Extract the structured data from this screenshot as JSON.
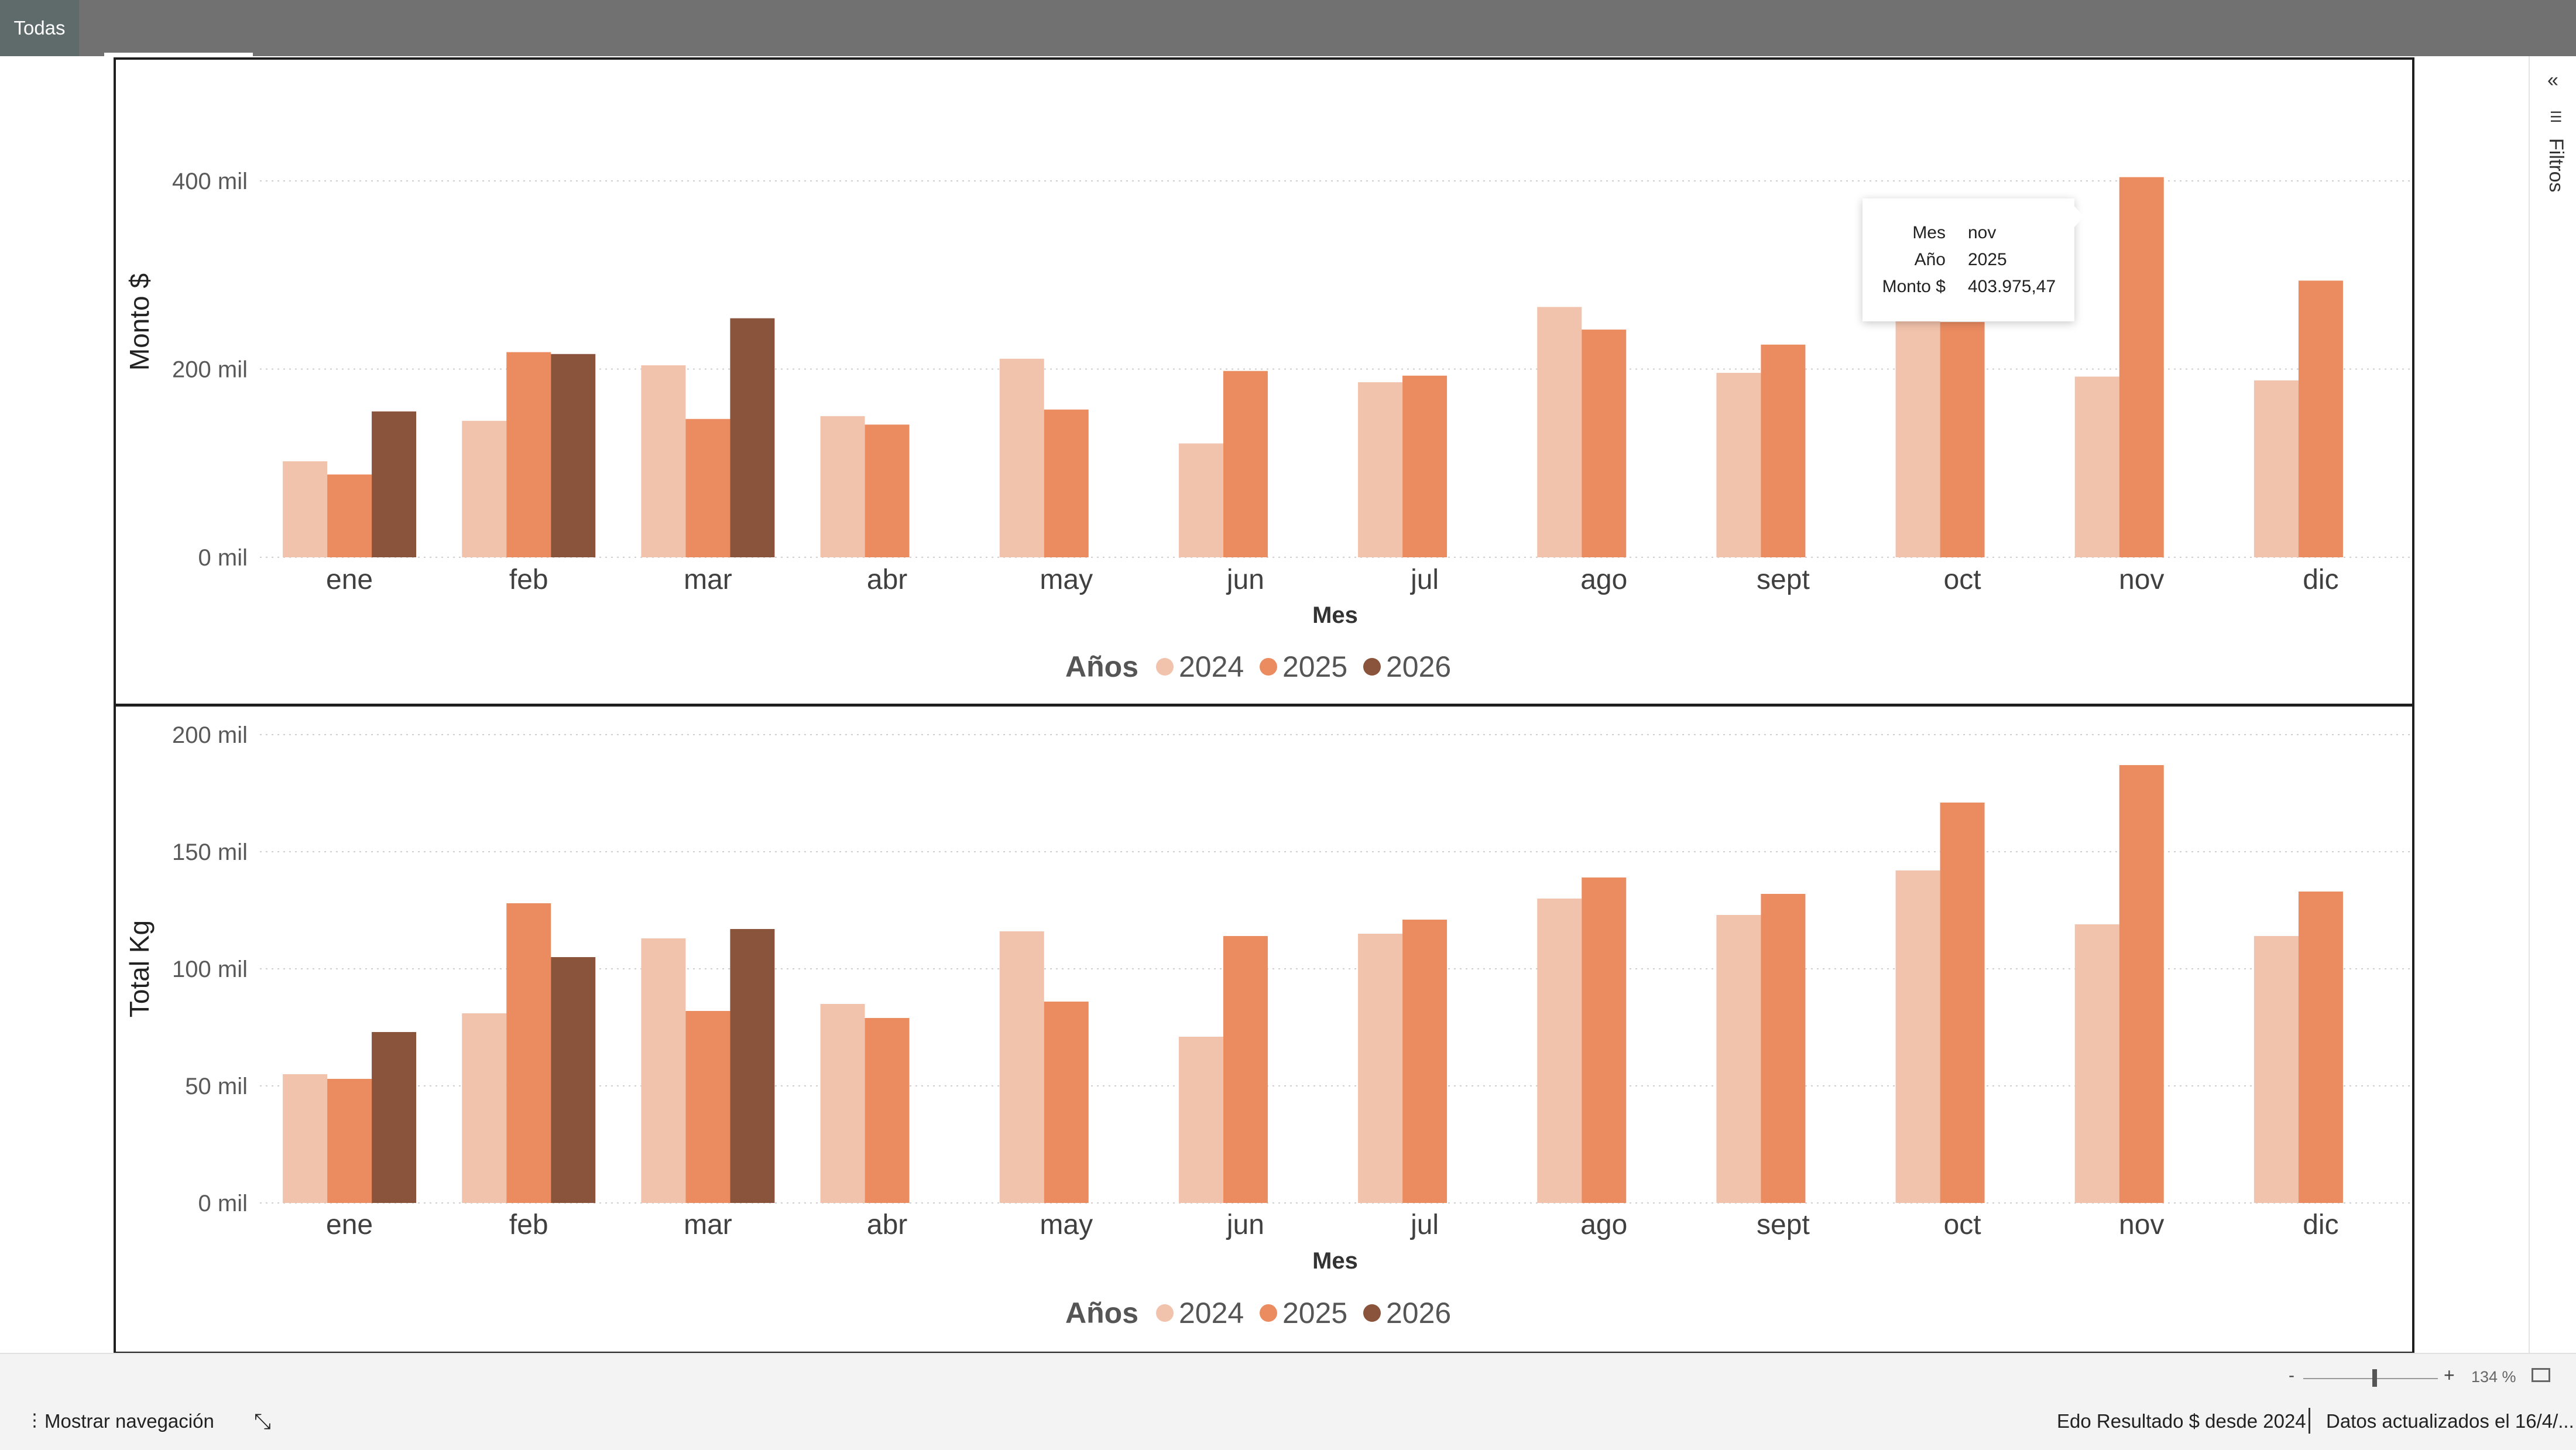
{
  "top_tab": {
    "label": "Todas"
  },
  "chart_data": [
    {
      "type": "bar",
      "categories": [
        "ene",
        "feb",
        "mar",
        "abr",
        "may",
        "jun",
        "jul",
        "ago",
        "sept",
        "oct",
        "nov",
        "dic"
      ],
      "series": [
        {
          "name": "2024",
          "values": [
            102000,
            145000,
            204000,
            150000,
            211000,
            121000,
            186000,
            266000,
            196000,
            258000,
            192000,
            188000
          ]
        },
        {
          "name": "2025",
          "values": [
            88000,
            218000,
            147000,
            141000,
            157000,
            198000,
            193000,
            242000,
            226000,
            250000,
            403975.47,
            294000
          ]
        },
        {
          "name": "2026",
          "values": [
            155000,
            216000,
            254000,
            null,
            null,
            null,
            null,
            null,
            null,
            null,
            null,
            null
          ]
        }
      ],
      "series_colors": [
        "#f2c3ac",
        "#eb8b60",
        "#8a533b"
      ],
      "xlabel": "Mes",
      "ylabel": "Monto $",
      "ylim": [
        0,
        400000
      ],
      "yticks": [
        0,
        200000,
        400000
      ],
      "ytick_labels": [
        "0 mil",
        "200 mil",
        "400 mil"
      ],
      "grid": true,
      "legend": {
        "title": "Años",
        "placement": "bottom-center"
      }
    },
    {
      "type": "bar",
      "categories": [
        "ene",
        "feb",
        "mar",
        "abr",
        "may",
        "jun",
        "jul",
        "ago",
        "sept",
        "oct",
        "nov",
        "dic"
      ],
      "series": [
        {
          "name": "2024",
          "values": [
            55000,
            81000,
            113000,
            85000,
            116000,
            71000,
            115000,
            130000,
            123000,
            142000,
            119000,
            114000
          ]
        },
        {
          "name": "2025",
          "values": [
            53000,
            128000,
            82000,
            79000,
            86000,
            114000,
            121000,
            139000,
            132000,
            171000,
            187000,
            133000
          ]
        },
        {
          "name": "2026",
          "values": [
            73000,
            105000,
            117000,
            null,
            null,
            null,
            null,
            null,
            null,
            null,
            null,
            null
          ]
        }
      ],
      "series_colors": [
        "#f2c3ac",
        "#eb8b60",
        "#8a533b"
      ],
      "xlabel": "Mes",
      "ylabel": "Total Kg",
      "ylim": [
        0,
        200000
      ],
      "yticks": [
        0,
        50000,
        100000,
        150000,
        200000
      ],
      "ytick_labels": [
        "0 mil",
        "50 mil",
        "100 mil",
        "150 mil",
        "200 mil"
      ],
      "grid": true,
      "legend": {
        "title": "Años",
        "placement": "bottom-center"
      }
    }
  ],
  "tooltip": {
    "rows": [
      {
        "key": "Mes",
        "value": "nov"
      },
      {
        "key": "Año",
        "value": "2025"
      },
      {
        "key": "Monto $",
        "value": "403.975,47"
      }
    ]
  },
  "filters_pane": {
    "label": "Filtros",
    "collapse_icon": "double-chevron-left-icon",
    "filter_icon": "filter-icon"
  },
  "status_bar": {
    "zoom_minus": "-",
    "zoom_plus": "+",
    "zoom_level": "134 %",
    "zoom_fraction": 0.53,
    "nav_button": "Mostrar navegación",
    "report_name": "Edo Resultado $ desde 2024",
    "updated_text": "Datos actualizados el 16/4/..."
  }
}
